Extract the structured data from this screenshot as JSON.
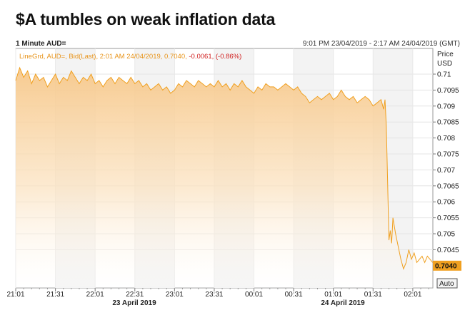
{
  "headline": "$A tumbles on weak inflation data",
  "chart_header": {
    "instrument": "1 Minute AUD=",
    "range": "9:01 PM 23/04/2019 - 2:17 AM 24/04/2019 (GMT)"
  },
  "legend": {
    "prefix": "LineGrd, AUD=, Bid(Last),  2:01 AM 24/04/2019, 0.7040, ",
    "change": "-0.0061, (-0.86%)"
  },
  "axis_title": {
    "line1": "Price",
    "line2": "USD"
  },
  "last_price_label": "0.7040",
  "auto_button": "Auto",
  "date_labels": [
    "23 April 2019",
    "24 April 2019"
  ],
  "colors": {
    "line": "#f0a020",
    "fill_top": "#f7c98a",
    "change": "#d02020",
    "last_badge": "#f0a020"
  },
  "chart_data": {
    "type": "area",
    "ylim": [
      0.7037,
      0.7112
    ],
    "yticks": [
      "0.71",
      "0.7095",
      "0.709",
      "0.7085",
      "0.708",
      "0.7075",
      "0.707",
      "0.7065",
      "0.706",
      "0.7055",
      "0.705",
      "0.7045"
    ],
    "xticks": [
      "21:01",
      "21:31",
      "22:01",
      "22:31",
      "23:01",
      "23:31",
      "00:01",
      "00:31",
      "01:01",
      "01:31",
      "02:01"
    ],
    "x_range_minutes": [
      0,
      318
    ],
    "series": [
      {
        "points": [
          [
            0,
            0.7098
          ],
          [
            3,
            0.7102
          ],
          [
            6,
            0.7099
          ],
          [
            9,
            0.7101
          ],
          [
            12,
            0.7097
          ],
          [
            15,
            0.71
          ],
          [
            18,
            0.7098
          ],
          [
            21,
            0.7099
          ],
          [
            24,
            0.7096
          ],
          [
            27,
            0.7098
          ],
          [
            30,
            0.71
          ],
          [
            33,
            0.7097
          ],
          [
            36,
            0.7099
          ],
          [
            39,
            0.7098
          ],
          [
            42,
            0.7101
          ],
          [
            45,
            0.7099
          ],
          [
            48,
            0.7097
          ],
          [
            51,
            0.7099
          ],
          [
            54,
            0.7098
          ],
          [
            57,
            0.71
          ],
          [
            60,
            0.7097
          ],
          [
            63,
            0.7098
          ],
          [
            66,
            0.7096
          ],
          [
            69,
            0.7098
          ],
          [
            72,
            0.7099
          ],
          [
            75,
            0.7097
          ],
          [
            78,
            0.7099
          ],
          [
            81,
            0.7098
          ],
          [
            84,
            0.7097
          ],
          [
            87,
            0.7099
          ],
          [
            90,
            0.7097
          ],
          [
            93,
            0.7098
          ],
          [
            96,
            0.7096
          ],
          [
            99,
            0.7097
          ],
          [
            102,
            0.7095
          ],
          [
            105,
            0.7096
          ],
          [
            108,
            0.7097
          ],
          [
            111,
            0.7095
          ],
          [
            114,
            0.7096
          ],
          [
            117,
            0.7094
          ],
          [
            120,
            0.7095
          ],
          [
            123,
            0.7097
          ],
          [
            126,
            0.7096
          ],
          [
            129,
            0.7098
          ],
          [
            132,
            0.7097
          ],
          [
            135,
            0.7096
          ],
          [
            138,
            0.7098
          ],
          [
            141,
            0.7097
          ],
          [
            144,
            0.7096
          ],
          [
            147,
            0.7097
          ],
          [
            150,
            0.7096
          ],
          [
            153,
            0.7098
          ],
          [
            156,
            0.7096
          ],
          [
            159,
            0.7097
          ],
          [
            162,
            0.7095
          ],
          [
            165,
            0.7097
          ],
          [
            168,
            0.7096
          ],
          [
            171,
            0.7098
          ],
          [
            174,
            0.7096
          ],
          [
            177,
            0.7095
          ],
          [
            180,
            0.7094
          ],
          [
            183,
            0.7096
          ],
          [
            186,
            0.7095
          ],
          [
            189,
            0.7097
          ],
          [
            192,
            0.7096
          ],
          [
            195,
            0.7096
          ],
          [
            198,
            0.7095
          ],
          [
            201,
            0.7096
          ],
          [
            204,
            0.7097
          ],
          [
            207,
            0.7096
          ],
          [
            210,
            0.7095
          ],
          [
            213,
            0.7096
          ],
          [
            216,
            0.7094
          ],
          [
            219,
            0.7093
          ],
          [
            222,
            0.7091
          ],
          [
            225,
            0.7092
          ],
          [
            228,
            0.7093
          ],
          [
            231,
            0.7092
          ],
          [
            234,
            0.7093
          ],
          [
            237,
            0.7094
          ],
          [
            240,
            0.7092
          ],
          [
            243,
            0.7093
          ],
          [
            246,
            0.7095
          ],
          [
            249,
            0.7093
          ],
          [
            252,
            0.7092
          ],
          [
            255,
            0.7093
          ],
          [
            258,
            0.7091
          ],
          [
            261,
            0.7092
          ],
          [
            264,
            0.7093
          ],
          [
            267,
            0.7092
          ],
          [
            270,
            0.709
          ],
          [
            273,
            0.7091
          ],
          [
            276,
            0.7092
          ],
          [
            278,
            0.7089
          ],
          [
            279,
            0.7092
          ],
          [
            280,
            0.7084
          ],
          [
            281,
            0.7066
          ],
          [
            282,
            0.7048
          ],
          [
            283,
            0.7051
          ],
          [
            284,
            0.7047
          ],
          [
            285,
            0.7055
          ],
          [
            287,
            0.705
          ],
          [
            289,
            0.7046
          ],
          [
            291,
            0.7042
          ],
          [
            293,
            0.7039
          ],
          [
            295,
            0.7041
          ],
          [
            297,
            0.7045
          ],
          [
            299,
            0.7042
          ],
          [
            301,
            0.7044
          ],
          [
            303,
            0.7041
          ],
          [
            305,
            0.7042
          ],
          [
            307,
            0.7043
          ],
          [
            309,
            0.7041
          ],
          [
            311,
            0.7043
          ],
          [
            313,
            0.7042
          ],
          [
            315,
            0.7041
          ]
        ]
      }
    ]
  }
}
